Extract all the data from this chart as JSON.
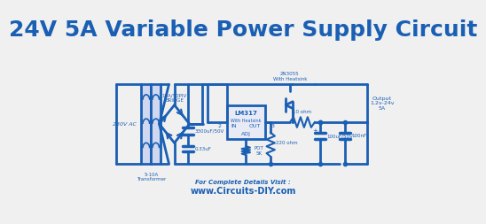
{
  "title": "24V 5A Variable Power Supply Circuit",
  "title_color": "#1a5fb4",
  "title_fontsize": 18,
  "title_fontweight": "bold",
  "bg_color": "#f0f0f0",
  "line_color": "#1a5fb4",
  "lw": 2.0,
  "footer_text1": "For Complete Details Visit :",
  "footer_text2": "www.Circuits-DIY.com",
  "footer_color": "#1a5fb4"
}
